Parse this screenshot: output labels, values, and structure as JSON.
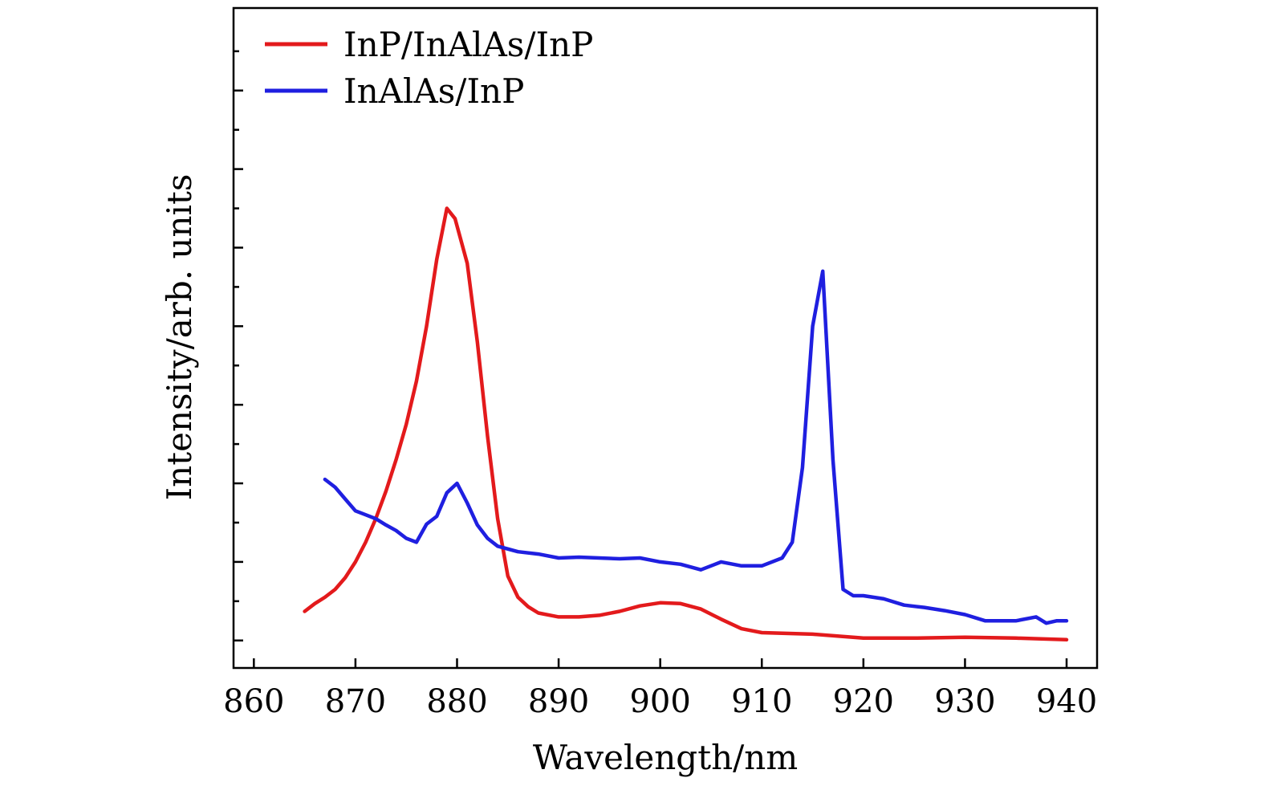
{
  "chart_data": {
    "type": "line",
    "title": "",
    "xlabel": "Wavelength/nm",
    "ylabel": "Intensity/arb. units",
    "xlim": [
      858,
      943
    ],
    "ylim": [
      -0.35,
      8.05
    ],
    "x_ticks": [
      860,
      870,
      880,
      890,
      900,
      910,
      920,
      930,
      940
    ],
    "y_major_ticks": [
      0,
      1,
      2,
      3,
      4,
      5,
      6,
      7
    ],
    "y_minor_ticks": [
      0.5,
      1.5,
      2.5,
      3.5,
      4.5,
      5.5,
      6.5,
      7.5
    ],
    "y_tick_labels_shown": false,
    "grid": false,
    "legend_position": "top-left",
    "series": [
      {
        "name": "InP/InAlAs/InP",
        "color": "#e31a1c",
        "points": [
          [
            865,
            0.37
          ],
          [
            866,
            0.47
          ],
          [
            867,
            0.55
          ],
          [
            868,
            0.65
          ],
          [
            869,
            0.8
          ],
          [
            870,
            1.0
          ],
          [
            871,
            1.25
          ],
          [
            872,
            1.55
          ],
          [
            873,
            1.9
          ],
          [
            874,
            2.3
          ],
          [
            875,
            2.75
          ],
          [
            876,
            3.3
          ],
          [
            877,
            4.0
          ],
          [
            878,
            4.85
          ],
          [
            879,
            5.5
          ],
          [
            879.8,
            5.37
          ],
          [
            881,
            4.8
          ],
          [
            882,
            3.8
          ],
          [
            883,
            2.6
          ],
          [
            884,
            1.55
          ],
          [
            885,
            0.82
          ],
          [
            886,
            0.55
          ],
          [
            887,
            0.43
          ],
          [
            888,
            0.35
          ],
          [
            890,
            0.3
          ],
          [
            892,
            0.3
          ],
          [
            894,
            0.32
          ],
          [
            896,
            0.37
          ],
          [
            898,
            0.44
          ],
          [
            900,
            0.48
          ],
          [
            902,
            0.47
          ],
          [
            904,
            0.4
          ],
          [
            906,
            0.27
          ],
          [
            908,
            0.15
          ],
          [
            910,
            0.1
          ],
          [
            915,
            0.08
          ],
          [
            920,
            0.03
          ],
          [
            925,
            0.03
          ],
          [
            930,
            0.04
          ],
          [
            935,
            0.03
          ],
          [
            940,
            0.01
          ]
        ]
      },
      {
        "name": "InAlAs/InP",
        "color": "#1f1fe0",
        "points": [
          [
            867,
            2.05
          ],
          [
            868,
            1.95
          ],
          [
            869,
            1.8
          ],
          [
            870,
            1.65
          ],
          [
            871,
            1.6
          ],
          [
            872,
            1.55
          ],
          [
            873,
            1.47
          ],
          [
            874,
            1.4
          ],
          [
            875,
            1.3
          ],
          [
            876,
            1.25
          ],
          [
            877,
            1.48
          ],
          [
            878,
            1.58
          ],
          [
            879,
            1.88
          ],
          [
            880,
            2.0
          ],
          [
            881,
            1.75
          ],
          [
            882,
            1.47
          ],
          [
            883,
            1.3
          ],
          [
            884,
            1.2
          ],
          [
            886,
            1.13
          ],
          [
            888,
            1.1
          ],
          [
            890,
            1.05
          ],
          [
            892,
            1.06
          ],
          [
            894,
            1.05
          ],
          [
            896,
            1.04
          ],
          [
            898,
            1.05
          ],
          [
            900,
            1.0
          ],
          [
            902,
            0.97
          ],
          [
            904,
            0.9
          ],
          [
            906,
            1.0
          ],
          [
            908,
            0.95
          ],
          [
            910,
            0.95
          ],
          [
            912,
            1.05
          ],
          [
            913,
            1.25
          ],
          [
            914,
            2.2
          ],
          [
            915,
            4.0
          ],
          [
            916,
            4.7
          ],
          [
            917,
            2.3
          ],
          [
            918,
            0.65
          ],
          [
            919,
            0.57
          ],
          [
            920,
            0.57
          ],
          [
            922,
            0.53
          ],
          [
            924,
            0.45
          ],
          [
            926,
            0.42
          ],
          [
            928,
            0.38
          ],
          [
            930,
            0.33
          ],
          [
            932,
            0.25
          ],
          [
            935,
            0.25
          ],
          [
            937,
            0.3
          ],
          [
            938,
            0.22
          ],
          [
            939,
            0.25
          ],
          [
            940,
            0.25
          ]
        ]
      }
    ]
  }
}
